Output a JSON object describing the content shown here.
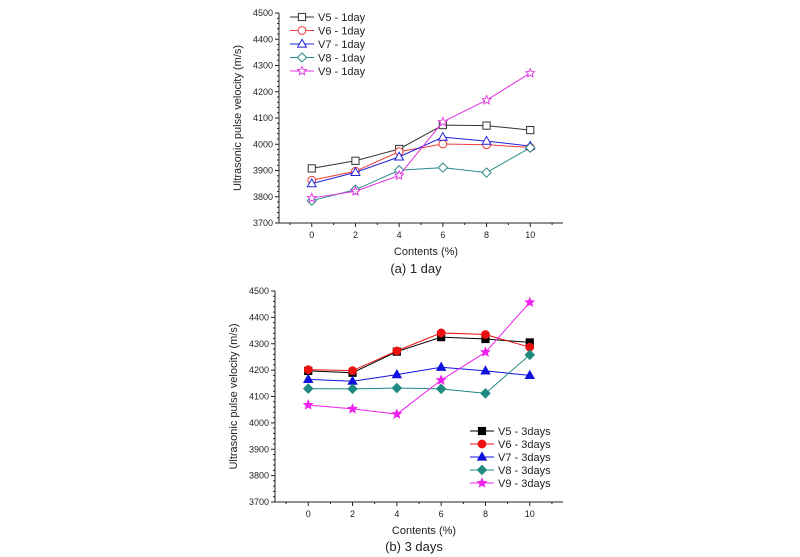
{
  "chart_data": [
    {
      "type": "line",
      "caption": "(a)  1  day",
      "xlabel": "Contents (%)",
      "ylabel": "Ultrasonic pulse velocity (m/s)",
      "x": [
        0,
        2,
        4,
        6,
        8,
        10
      ],
      "xlim": [
        -1.5,
        11.5
      ],
      "ylim": [
        3700,
        4500
      ],
      "yticks": [
        3700,
        3800,
        3900,
        4000,
        4100,
        4200,
        4300,
        4400,
        4500
      ],
      "xticks": [
        0,
        2,
        4,
        6,
        8,
        10
      ],
      "grid": false,
      "legend_position": "top-left",
      "series": [
        {
          "name": "V5 -  1day",
          "color": "#333333",
          "marker": "square",
          "filled": false,
          "values": [
            3908,
            3937,
            3982,
            4073,
            4071,
            4054
          ]
        },
        {
          "name": "V6 -  1day",
          "color": "#ee3b3b",
          "marker": "circle",
          "filled": false,
          "values": [
            3863,
            3897,
            3972,
            4001,
            3998,
            3988
          ]
        },
        {
          "name": "V7 -  1day",
          "color": "#2222dd",
          "marker": "triangle",
          "filled": false,
          "values": [
            3850,
            3893,
            3952,
            4027,
            4012,
            3993
          ]
        },
        {
          "name": "V8 -  1day",
          "color": "#2a8a8a",
          "marker": "diamond",
          "filled": false,
          "values": [
            3785,
            3827,
            3901,
            3911,
            3892,
            3987
          ]
        },
        {
          "name": "V9 -  1day",
          "color": "#e033e0",
          "marker": "star",
          "filled": false,
          "values": [
            3795,
            3821,
            3881,
            4085,
            4168,
            4271
          ]
        }
      ]
    },
    {
      "type": "line",
      "caption": "(b)  3  days",
      "xlabel": "Contents (%)",
      "ylabel": "Ultrasonic pulse velocity (m/s)",
      "x": [
        0,
        2,
        4,
        6,
        8,
        10
      ],
      "xlim": [
        -1.5,
        11.5
      ],
      "ylim": [
        3700,
        4500
      ],
      "yticks": [
        3700,
        3800,
        3900,
        4000,
        4100,
        4200,
        4300,
        4400,
        4500
      ],
      "xticks": [
        0,
        2,
        4,
        6,
        8,
        10
      ],
      "grid": false,
      "legend_position": "bottom-right",
      "series": [
        {
          "name": "V5 -  3days",
          "color": "#000000",
          "marker": "square",
          "filled": true,
          "values": [
            4197,
            4190,
            4270,
            4325,
            4318,
            4305
          ]
        },
        {
          "name": "V6 -  3days",
          "color": "#ee1111",
          "marker": "circle",
          "filled": true,
          "values": [
            4202,
            4198,
            4273,
            4341,
            4335,
            4287
          ]
        },
        {
          "name": "V7 -  3days",
          "color": "#1111dd",
          "marker": "triangle",
          "filled": true,
          "values": [
            4165,
            4158,
            4183,
            4211,
            4197,
            4180
          ]
        },
        {
          "name": "V8 -  3days",
          "color": "#1f8a80",
          "marker": "diamond",
          "filled": true,
          "values": [
            4130,
            4129,
            4132,
            4129,
            4112,
            4258
          ]
        },
        {
          "name": "V9 -  3days",
          "color": "#ee22ee",
          "marker": "star",
          "filled": true,
          "values": [
            4068,
            4053,
            4033,
            4162,
            4268,
            4457
          ]
        }
      ]
    }
  ]
}
